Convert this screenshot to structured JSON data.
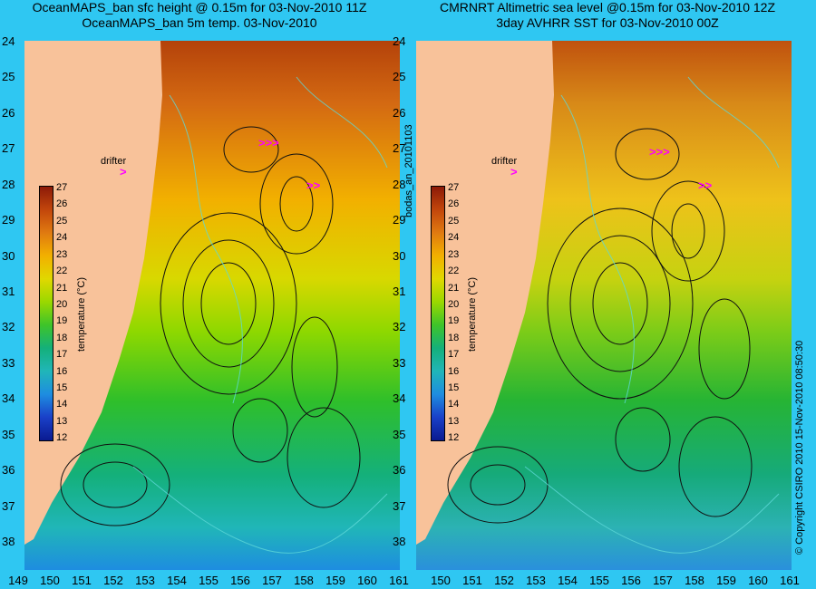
{
  "panels": [
    {
      "title_line1": "OceanMAPS_ban sfc height @ 0.15m for 03-Nov-2010 11Z",
      "title_line2": "OceanMAPS_ban 5m temp. 03-Nov-2010"
    },
    {
      "title_line1": "CMRNRT Altimetric sea level  @0.15m  for 03-Nov-2010 12Z",
      "title_line2": "3day AVHRR SST for 03-Nov-2010 00Z"
    }
  ],
  "axes": {
    "lat_ticks": [
      "24",
      "25",
      "26",
      "27",
      "28",
      "29",
      "30",
      "31",
      "32",
      "33",
      "34",
      "35",
      "36",
      "37",
      "38"
    ],
    "lon_ticks": [
      "149",
      "150",
      "151",
      "152",
      "153",
      "154",
      "155",
      "156",
      "157",
      "158",
      "159",
      "160",
      "161"
    ]
  },
  "colorbar": {
    "title": "temperature (°C)",
    "ticks": [
      "27",
      "26",
      "25",
      "24",
      "23",
      "22",
      "21",
      "20",
      "19",
      "18",
      "17",
      "16",
      "15",
      "14",
      "13",
      "12"
    ]
  },
  "drifter_label": "drifter",
  "file_label": "bodas_an_20101103",
  "copyright": "© Copyright CSIRO 2010   15-Nov-2010 08:50:30",
  "colors": {
    "background": "#2fc7f2",
    "land": "#f8c29a",
    "drifter": "#ff00ff"
  }
}
